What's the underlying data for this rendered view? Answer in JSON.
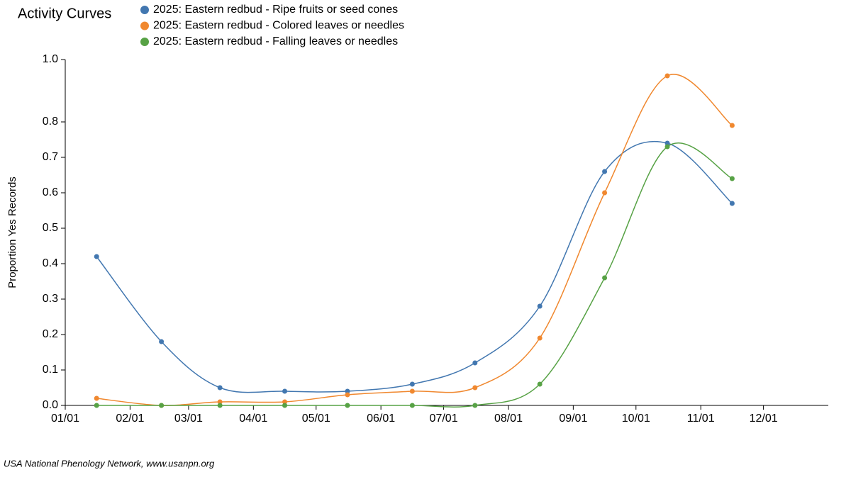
{
  "chart_data": {
    "type": "line",
    "title": "Activity Curves",
    "ylabel": "Proportion Yes Records",
    "footer": "USA National Phenology Network, www.usanpn.org",
    "x": [
      15,
      46,
      74,
      105,
      135,
      166,
      196,
      227,
      258,
      288,
      319
    ],
    "xlim": [
      0,
      365
    ],
    "xticks": [
      {
        "value": 0,
        "label": "01/01"
      },
      {
        "value": 31,
        "label": "02/01"
      },
      {
        "value": 59,
        "label": "03/01"
      },
      {
        "value": 90,
        "label": "04/01"
      },
      {
        "value": 120,
        "label": "05/01"
      },
      {
        "value": 151,
        "label": "06/01"
      },
      {
        "value": 181,
        "label": "07/01"
      },
      {
        "value": 212,
        "label": "08/01"
      },
      {
        "value": 243,
        "label": "09/01"
      },
      {
        "value": 273,
        "label": "10/01"
      },
      {
        "value": 304,
        "label": "11/01"
      },
      {
        "value": 334,
        "label": "12/01"
      }
    ],
    "ylim": [
      0,
      0.976
    ],
    "yticks": [
      {
        "value": 0,
        "label": "0.0"
      },
      0.1,
      0.2,
      0.3,
      0.4,
      0.5,
      0.6,
      0.7,
      0.8,
      {
        "value": 0.976,
        "label": "1.0"
      }
    ],
    "series": [
      {
        "name": "2025: Eastern redbud - Ripe fruits or seed cones",
        "color": "#4277b0",
        "values": [
          0.42,
          0.18,
          0.05,
          0.04,
          0.04,
          0.06,
          0.12,
          0.28,
          0.66,
          0.74,
          0.57
        ]
      },
      {
        "name": "2025: Eastern redbud - Colored leaves or needles",
        "color": "#f0882f",
        "values": [
          0.02,
          0,
          0.01,
          0.01,
          0.03,
          0.04,
          0.05,
          0.19,
          0.6,
          0.93,
          0.79
        ]
      },
      {
        "name": "2025: Eastern redbud - Falling leaves or needles",
        "color": "#57a245",
        "values": [
          0,
          0,
          0,
          0,
          0,
          0,
          0,
          0.06,
          0.36,
          0.73,
          0.64
        ]
      }
    ]
  }
}
